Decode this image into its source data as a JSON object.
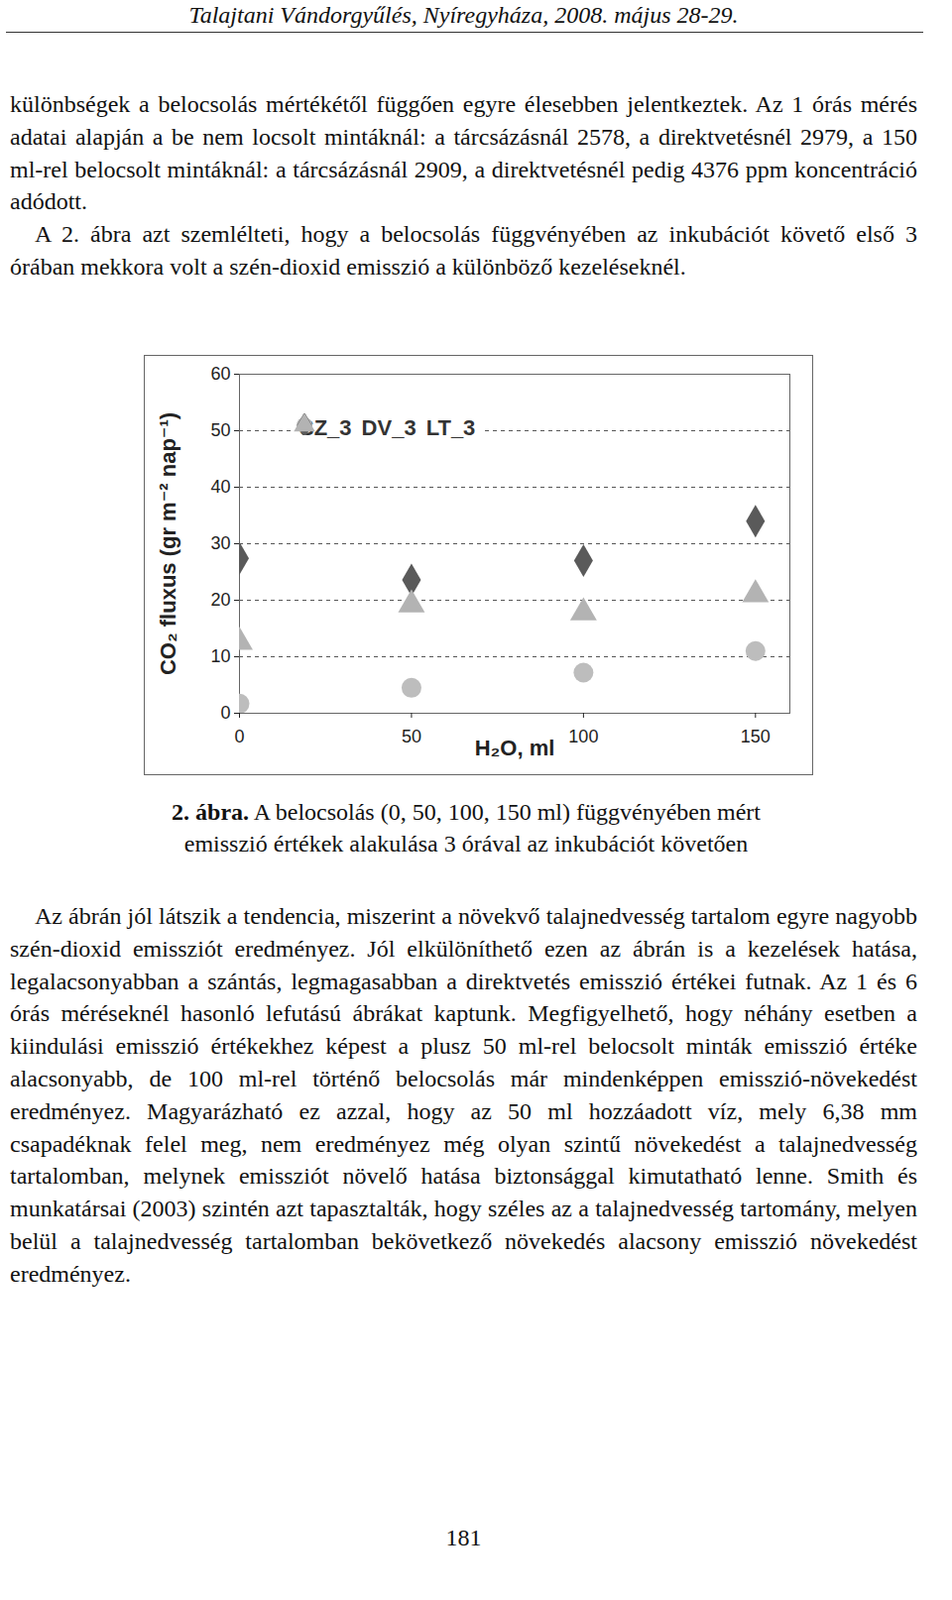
{
  "header": "Talajtani Vándorgyűlés, Nyíregyháza, 2008. május 28-29.",
  "paragraphs_before": [
    "különbségek a belocsolás mértékétől függően egyre élesebben jelentkeztek. Az 1 órás mérés adatai alapján a be nem locsolt mintáknál: a tárcsázásnál 2578, a direktvetésnél 2979, a 150 ml-rel belocsolt mintáknál: a tárcsázásnál 2909, a direktvetésnél pedig 4376 ppm koncentráció adódott.",
    "A 2. ábra azt szemlélteti, hogy a belocsolás függvényében az inkubációt követő első 3 órában mekkora volt a szén-dioxid emisszió a különböző kezeléseknél."
  ],
  "chart_data": {
    "type": "scatter",
    "x_label": "H₂O, ml",
    "y_label": "CO₂ fluxus (gr m⁻² nap⁻¹)",
    "x": [
      0,
      50,
      100,
      150
    ],
    "series": [
      {
        "name": "SZ_3",
        "color": "#bdbdbd",
        "marker": "circle",
        "values": [
          1.7,
          4.5,
          7.2,
          11
        ]
      },
      {
        "name": "DV_3",
        "color": "#5a5a5a",
        "marker": "diamond",
        "values": [
          27.4,
          23.6,
          27,
          34
        ]
      },
      {
        "name": "LT_3",
        "color": "#b3b3b3",
        "marker": "triangle",
        "values": [
          12.6,
          19.2,
          17.8,
          21
        ]
      }
    ],
    "xlim": [
      0,
      160
    ],
    "xticks": [
      0,
      50,
      100,
      150
    ],
    "ylim": [
      0,
      60
    ],
    "yticks": [
      0,
      10,
      20,
      30,
      40,
      50,
      60
    ],
    "grid": true,
    "legend": "top"
  },
  "caption": {
    "label": "2. ábra.",
    "text": "A belocsolás (0, 50, 100, 150 ml) függvényében mért emisszió értékek alakulása 3 órával az inkubációt követően"
  },
  "paragraphs_after": [
    "Az ábrán jól látszik a tendencia, miszerint a növekvő talajnedvesség tartalom egyre nagyobb szén-dioxid emissziót eredményez. Jól elkülöníthető ezen az ábrán is a kezelések hatása, legalacsonyabban a szántás, legmagasabban a direktvetés emisszió értékei futnak. Az 1 és 6 órás méréseknél hasonló lefutású ábrákat kaptunk. Megfigyelhető, hogy néhány esetben a kiindulási emisszió értékekhez képest a plusz 50 ml-rel belocsolt minták emisszió értéke alacsonyabb, de 100 ml-rel történő belocsolás már mindenképpen emisszió-növekedést eredményez. Magyarázható ez azzal, hogy az 50 ml hozzáadott víz, mely 6,38 mm csapadéknak felel meg, nem eredményez még olyan szintű növekedést a talajnedvesség tartalomban, melynek emissziót növelő hatása biztonsággal kimutatható lenne. Smith és munkatársai (2003) szintén azt tapasztalták, hogy széles az a talajnedvesség tartomány, melyen belül a talajnedvesség tartalomban bekövetkező növekedés alacsony emisszió növekedést eredményez."
  ],
  "page_number": "181"
}
